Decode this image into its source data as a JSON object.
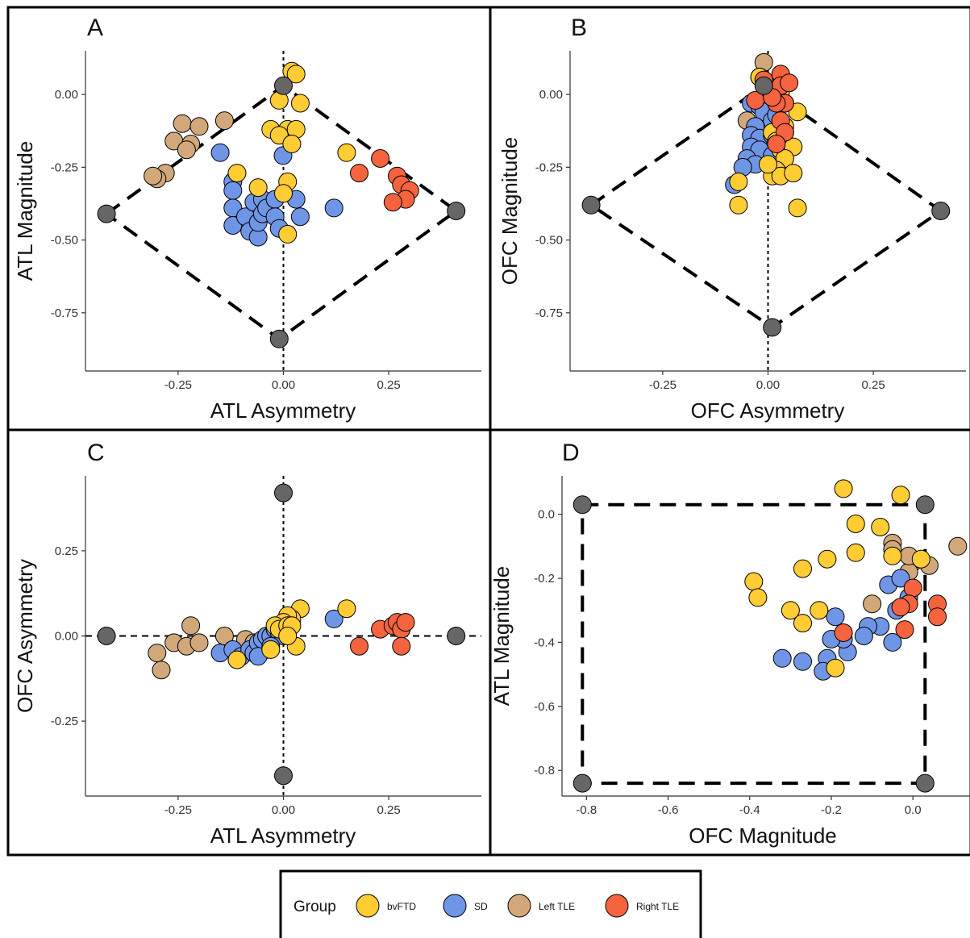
{
  "colors": {
    "bvFTD": "#FFCC33",
    "SD": "#6F95E6",
    "Left TLE": "#D2A87B",
    "Right TLE": "#F5633F",
    "reference": "#666666"
  },
  "legend": {
    "title": "Group",
    "entries": [
      "bvFTD",
      "SD",
      "Left TLE",
      "Right TLE"
    ]
  },
  "chart_data": [
    {
      "type": "scatter",
      "panel": "A",
      "xlabel": "ATL Asymmetry",
      "ylabel": "ATL Magnitude",
      "xlim": [
        -0.47,
        0.47
      ],
      "ylim": [
        -0.95,
        0.15
      ],
      "xticks": [
        -0.25,
        0.0,
        0.25
      ],
      "yticks": [
        0.0,
        -0.25,
        -0.5,
        -0.75
      ],
      "xtick_labels": [
        "-0.25",
        "0.00",
        "0.25"
      ],
      "ytick_labels": [
        "0.00",
        "-0.25",
        "-0.50",
        "-0.75"
      ],
      "grid": false,
      "reference_lines": [
        {
          "orientation": "vertical",
          "value": 0,
          "style": "dotted"
        }
      ],
      "envelope": [
        [
          -0.42,
          -0.41
        ],
        [
          0.0,
          0.03
        ],
        [
          0.41,
          -0.4
        ],
        [
          -0.01,
          -0.84
        ],
        [
          -0.42,
          -0.41
        ]
      ],
      "reference_points": [
        [
          -0.42,
          -0.41
        ],
        [
          0.0,
          0.03
        ],
        [
          0.41,
          -0.4
        ],
        [
          -0.01,
          -0.84
        ]
      ],
      "series": [
        {
          "name": "Left TLE",
          "points": [
            [
              -0.28,
              -0.27
            ],
            [
              -0.3,
              -0.29
            ],
            [
              -0.31,
              -0.28
            ],
            [
              -0.26,
              -0.16
            ],
            [
              -0.22,
              -0.17
            ],
            [
              -0.23,
              -0.19
            ],
            [
              -0.24,
              -0.1
            ],
            [
              -0.2,
              -0.11
            ],
            [
              -0.14,
              -0.09
            ]
          ]
        },
        {
          "name": "SD",
          "points": [
            [
              -0.15,
              -0.2
            ],
            [
              -0.12,
              -0.3
            ],
            [
              -0.12,
              -0.33
            ],
            [
              -0.12,
              -0.39
            ],
            [
              -0.12,
              -0.45
            ],
            [
              -0.09,
              -0.42
            ],
            [
              -0.08,
              -0.47
            ],
            [
              -0.06,
              -0.49
            ],
            [
              -0.06,
              -0.44
            ],
            [
              -0.07,
              -0.37
            ],
            [
              -0.05,
              -0.36
            ],
            [
              -0.05,
              -0.41
            ],
            [
              -0.04,
              -0.39
            ],
            [
              -0.02,
              -0.36
            ],
            [
              -0.02,
              -0.42
            ],
            [
              -0.01,
              -0.46
            ],
            [
              0.03,
              -0.36
            ],
            [
              0.04,
              -0.42
            ],
            [
              0.12,
              -0.39
            ],
            [
              -0.001,
              -0.21
            ]
          ]
        },
        {
          "name": "bvFTD",
          "points": [
            [
              0.02,
              0.08
            ],
            [
              0.03,
              0.07
            ],
            [
              -0.01,
              -0.02
            ],
            [
              0.04,
              -0.03
            ],
            [
              -0.03,
              -0.12
            ],
            [
              0.01,
              -0.12
            ],
            [
              -0.01,
              -0.14
            ],
            [
              0.03,
              -0.12
            ],
            [
              0.02,
              -0.17
            ],
            [
              -0.11,
              -0.27
            ],
            [
              -0.06,
              -0.32
            ],
            [
              0.01,
              -0.3
            ],
            [
              0.0,
              -0.34
            ],
            [
              0.01,
              -0.48
            ],
            [
              0.15,
              -0.2
            ]
          ]
        },
        {
          "name": "Right TLE",
          "points": [
            [
              0.18,
              -0.27
            ],
            [
              0.23,
              -0.22
            ],
            [
              0.27,
              -0.28
            ],
            [
              0.28,
              -0.31
            ],
            [
              0.3,
              -0.33
            ],
            [
              0.29,
              -0.36
            ],
            [
              0.26,
              -0.37
            ]
          ]
        }
      ]
    },
    {
      "type": "scatter",
      "panel": "B",
      "xlabel": "OFC Asymmetry",
      "ylabel": "OFC Magnitude",
      "xlim": [
        -0.47,
        0.47
      ],
      "ylim": [
        -0.95,
        0.15
      ],
      "xticks": [
        -0.25,
        0.0,
        0.25
      ],
      "yticks": [
        0.0,
        -0.25,
        -0.5,
        -0.75
      ],
      "xtick_labels": [
        "-0.25",
        "0.00",
        "0.25"
      ],
      "ytick_labels": [
        "0.00",
        "-0.25",
        "-0.50",
        "-0.75"
      ],
      "grid": false,
      "reference_lines": [
        {
          "orientation": "vertical",
          "value": 0,
          "style": "dotted"
        }
      ],
      "envelope": [
        [
          -0.42,
          -0.38
        ],
        [
          -0.01,
          0.03
        ],
        [
          0.41,
          -0.4
        ],
        [
          0.01,
          -0.8
        ],
        [
          -0.42,
          -0.38
        ]
      ],
      "reference_points": [
        [
          -0.42,
          -0.38
        ],
        [
          -0.01,
          0.03
        ],
        [
          0.41,
          -0.4
        ],
        [
          0.01,
          -0.8
        ]
      ],
      "series": [
        {
          "name": "Left TLE",
          "points": [
            [
              -0.01,
              0.11
            ],
            [
              -0.02,
              0.06
            ],
            [
              0.04,
              -0.03
            ],
            [
              -0.05,
              -0.09
            ]
          ]
        },
        {
          "name": "SD",
          "points": [
            [
              -0.04,
              -0.03
            ],
            [
              -0.02,
              -0.04
            ],
            [
              -0.01,
              -0.06
            ],
            [
              0.01,
              -0.09
            ],
            [
              0.02,
              -0.07
            ],
            [
              -0.03,
              -0.11
            ],
            [
              -0.04,
              -0.14
            ],
            [
              -0.02,
              -0.15
            ],
            [
              0.01,
              -0.14
            ],
            [
              -0.04,
              -0.18
            ],
            [
              -0.02,
              -0.19
            ],
            [
              0.03,
              -0.18
            ],
            [
              -0.05,
              -0.22
            ],
            [
              -0.03,
              -0.24
            ],
            [
              0.01,
              -0.21
            ],
            [
              -0.08,
              -0.31
            ],
            [
              -0.06,
              -0.25
            ]
          ]
        },
        {
          "name": "bvFTD",
          "points": [
            [
              -0.02,
              0.06
            ],
            [
              0.01,
              0.03
            ],
            [
              0.03,
              0.01
            ],
            [
              0.07,
              -0.06
            ],
            [
              0.04,
              -0.11
            ],
            [
              0.01,
              -0.13
            ],
            [
              0.02,
              -0.16
            ],
            [
              0.03,
              -0.19
            ],
            [
              0.06,
              -0.18
            ],
            [
              0.04,
              -0.22
            ],
            [
              0.02,
              -0.26
            ],
            [
              0.01,
              -0.28
            ],
            [
              0.03,
              -0.28
            ],
            [
              0.06,
              -0.27
            ],
            [
              0.07,
              -0.39
            ],
            [
              -0.07,
              -0.38
            ],
            [
              -0.07,
              -0.3
            ],
            [
              0.0,
              -0.24
            ]
          ]
        },
        {
          "name": "Right TLE",
          "points": [
            [
              -0.01,
              0.05
            ],
            [
              0.03,
              0.07
            ],
            [
              0.03,
              0.03
            ],
            [
              0.05,
              0.04
            ],
            [
              0.04,
              -0.03
            ],
            [
              0.02,
              -0.03
            ],
            [
              -0.03,
              -0.02
            ],
            [
              0.01,
              -0.01
            ],
            [
              0.03,
              -0.09
            ],
            [
              0.04,
              -0.13
            ],
            [
              0.02,
              -0.17
            ]
          ]
        }
      ]
    },
    {
      "type": "scatter",
      "panel": "C",
      "xlabel": "ATL Asymmetry",
      "ylabel": "OFC Asymmetry",
      "xlim": [
        -0.47,
        0.47
      ],
      "ylim": [
        -0.47,
        0.47
      ],
      "xticks": [
        -0.25,
        0.0,
        0.25
      ],
      "yticks": [
        0.25,
        0.0,
        -0.25
      ],
      "xtick_labels": [
        "-0.25",
        "0.00",
        "0.25"
      ],
      "ytick_labels": [
        "0.25",
        "0.00",
        "-0.25"
      ],
      "grid": false,
      "reference_lines": [
        {
          "orientation": "vertical",
          "value": 0,
          "style": "dotted"
        },
        {
          "orientation": "horizontal",
          "value": 0,
          "style": "dashed"
        }
      ],
      "reference_points": [
        [
          -0.42,
          0.0
        ],
        [
          0.41,
          0.0
        ],
        [
          0.0,
          0.42
        ],
        [
          0.0,
          -0.41
        ]
      ],
      "series": [
        {
          "name": "Left TLE",
          "points": [
            [
              -0.3,
              -0.05
            ],
            [
              -0.29,
              -0.1
            ],
            [
              -0.26,
              -0.02
            ],
            [
              -0.23,
              -0.03
            ],
            [
              -0.22,
              0.03
            ],
            [
              -0.2,
              -0.02
            ],
            [
              -0.14,
              0.0
            ],
            [
              -0.09,
              -0.01
            ],
            [
              -0.07,
              -0.02
            ],
            [
              -0.04,
              -0.04
            ]
          ]
        },
        {
          "name": "SD",
          "points": [
            [
              -0.15,
              -0.05
            ],
            [
              -0.12,
              -0.04
            ],
            [
              -0.1,
              -0.06
            ],
            [
              -0.08,
              -0.04
            ],
            [
              -0.07,
              -0.05
            ],
            [
              -0.06,
              -0.02
            ],
            [
              -0.05,
              -0.01
            ],
            [
              -0.04,
              0.0
            ],
            [
              -0.03,
              0.0
            ],
            [
              -0.02,
              0.02
            ],
            [
              -0.01,
              0.01
            ],
            [
              0.0,
              0.0
            ],
            [
              -0.03,
              -0.03
            ],
            [
              -0.06,
              -0.06
            ],
            [
              0.12,
              0.05
            ]
          ]
        },
        {
          "name": "bvFTD",
          "points": [
            [
              0.04,
              0.08
            ],
            [
              0.02,
              0.05
            ],
            [
              0.01,
              0.06
            ],
            [
              0.0,
              0.04
            ],
            [
              -0.02,
              0.03
            ],
            [
              -0.01,
              0.02
            ],
            [
              0.01,
              0.03
            ],
            [
              0.02,
              0.03
            ],
            [
              0.03,
              -0.03
            ],
            [
              -0.03,
              -0.04
            ],
            [
              0.01,
              0.0
            ],
            [
              -0.11,
              -0.07
            ],
            [
              0.15,
              0.08
            ]
          ]
        },
        {
          "name": "Right TLE",
          "points": [
            [
              0.18,
              -0.03
            ],
            [
              0.23,
              0.02
            ],
            [
              0.26,
              0.03
            ],
            [
              0.27,
              0.04
            ],
            [
              0.28,
              0.02
            ],
            [
              0.29,
              0.04
            ],
            [
              0.28,
              -0.03
            ]
          ]
        }
      ]
    },
    {
      "type": "scatter",
      "panel": "D",
      "xlabel": "OFC Magnitude",
      "ylabel": "ATL Magnitude",
      "xlim": [
        -0.86,
        0.14
      ],
      "ylim": [
        -0.88,
        0.12
      ],
      "xticks": [
        -0.8,
        -0.6,
        -0.4,
        -0.2,
        0.0
      ],
      "yticks": [
        0.0,
        -0.2,
        -0.4,
        -0.6,
        -0.8
      ],
      "xtick_labels": [
        "-0.8",
        "-0.6",
        "-0.4",
        "-0.2",
        "0.0"
      ],
      "ytick_labels": [
        "0.0",
        "-0.2",
        "-0.4",
        "-0.6",
        "-0.8"
      ],
      "grid": false,
      "envelope": [
        [
          -0.81,
          0.03
        ],
        [
          0.03,
          0.03
        ],
        [
          0.03,
          -0.84
        ],
        [
          -0.81,
          -0.84
        ],
        [
          -0.81,
          0.03
        ]
      ],
      "reference_points": [
        [
          -0.81,
          0.03
        ],
        [
          0.03,
          0.03
        ],
        [
          0.03,
          -0.84
        ],
        [
          -0.81,
          -0.84
        ]
      ],
      "series": [
        {
          "name": "Left TLE",
          "points": [
            [
              0.11,
              -0.1
            ],
            [
              -0.05,
              -0.09
            ],
            [
              -0.05,
              -0.11
            ],
            [
              0.0,
              -0.15
            ],
            [
              -0.01,
              -0.18
            ],
            [
              0.04,
              -0.16
            ],
            [
              -0.01,
              -0.13
            ],
            [
              -0.1,
              -0.28
            ]
          ]
        },
        {
          "name": "SD",
          "points": [
            [
              -0.06,
              -0.22
            ],
            [
              -0.03,
              -0.2
            ],
            [
              -0.01,
              -0.26
            ],
            [
              -0.04,
              -0.3
            ],
            [
              -0.08,
              -0.35
            ],
            [
              -0.11,
              -0.35
            ],
            [
              -0.12,
              -0.38
            ],
            [
              -0.16,
              -0.43
            ],
            [
              -0.17,
              -0.39
            ],
            [
              -0.2,
              -0.39
            ],
            [
              -0.19,
              -0.32
            ],
            [
              -0.21,
              -0.45
            ],
            [
              -0.22,
              -0.49
            ],
            [
              -0.27,
              -0.46
            ],
            [
              -0.32,
              -0.45
            ],
            [
              -0.05,
              -0.4
            ]
          ]
        },
        {
          "name": "bvFTD",
          "points": [
            [
              -0.17,
              0.08
            ],
            [
              -0.03,
              0.06
            ],
            [
              -0.14,
              -0.03
            ],
            [
              -0.08,
              -0.04
            ],
            [
              -0.14,
              -0.12
            ],
            [
              -0.05,
              -0.13
            ],
            [
              -0.21,
              -0.14
            ],
            [
              -0.27,
              -0.17
            ],
            [
              -0.39,
              -0.21
            ],
            [
              -0.38,
              -0.26
            ],
            [
              -0.3,
              -0.3
            ],
            [
              -0.23,
              -0.3
            ],
            [
              -0.27,
              -0.34
            ],
            [
              -0.19,
              -0.48
            ],
            [
              0.02,
              -0.14
            ]
          ]
        },
        {
          "name": "Right TLE",
          "points": [
            [
              -0.17,
              -0.37
            ],
            [
              0.0,
              -0.23
            ],
            [
              -0.01,
              -0.28
            ],
            [
              -0.03,
              -0.29
            ],
            [
              0.06,
              -0.28
            ],
            [
              0.06,
              -0.32
            ],
            [
              -0.02,
              -0.36
            ]
          ]
        }
      ]
    }
  ]
}
